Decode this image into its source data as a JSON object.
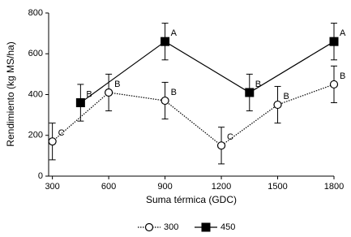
{
  "chart_data": {
    "type": "line",
    "x_label": "Suma térmica (GDC)",
    "y_label": "Rendimiento (kg MS/ha)",
    "xlim": [
      280,
      1800
    ],
    "xticks": [
      300,
      600,
      900,
      1200,
      1500,
      1800
    ],
    "ylim": [
      0,
      800
    ],
    "yticks": [
      0,
      200,
      400,
      600,
      800
    ],
    "grid": false,
    "legend": "bottom",
    "series": [
      {
        "name": "300",
        "color": "#000000",
        "marker": "open-circle",
        "linestyle": "dotted",
        "x": [
          300,
          600,
          900,
          1200,
          1500,
          1800
        ],
        "values": [
          170,
          410,
          370,
          150,
          350,
          450
        ],
        "errors": [
          90,
          90,
          90,
          90,
          90,
          90
        ],
        "annotations": [
          "C",
          "B",
          "B",
          "C",
          "B",
          "B"
        ]
      },
      {
        "name": "450",
        "color": "#000000",
        "marker": "filled-square",
        "linestyle": "solid",
        "x": [
          450,
          900,
          1350,
          1800
        ],
        "values": [
          360,
          660,
          410,
          660
        ],
        "errors": [
          90,
          90,
          90,
          90
        ],
        "annotations": [
          "B",
          "A",
          "B",
          "A"
        ]
      }
    ]
  }
}
